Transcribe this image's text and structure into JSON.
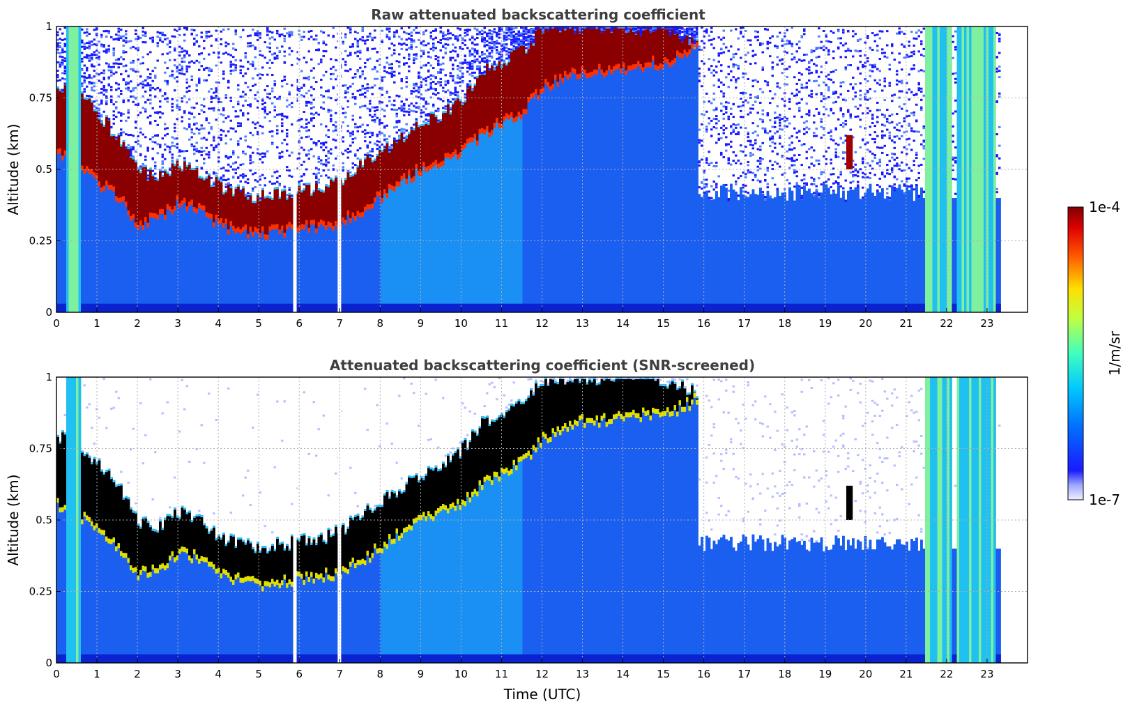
{
  "chart_data": [
    {
      "type": "heatmap",
      "title": "Raw attenuated backscattering coefficient",
      "xlabel": "",
      "ylabel": "Altitude (km)",
      "xlim": [
        0,
        24
      ],
      "ylim": [
        0,
        1
      ],
      "x_ticks": [
        "0",
        "1",
        "2",
        "3",
        "4",
        "5",
        "6",
        "7",
        "8",
        "9",
        "10",
        "11",
        "12",
        "13",
        "14",
        "15",
        "16",
        "17",
        "18",
        "19",
        "20",
        "21",
        "22",
        "23"
      ],
      "y_ticks": [
        "0",
        "0.25",
        "0.5",
        "0.75",
        "1"
      ],
      "grid": true,
      "screened": false,
      "cloud_base_km": [
        [
          0.0,
          0.55
        ],
        [
          0.5,
          0.52
        ],
        [
          1.0,
          0.45
        ],
        [
          1.5,
          0.4
        ],
        [
          2.0,
          0.3
        ],
        [
          2.5,
          0.33
        ],
        [
          3.0,
          0.38
        ],
        [
          3.5,
          0.36
        ],
        [
          4.0,
          0.3
        ],
        [
          4.5,
          0.28
        ],
        [
          5.0,
          0.27
        ],
        [
          5.5,
          0.28
        ],
        [
          6.0,
          0.29
        ],
        [
          6.5,
          0.3
        ],
        [
          7.0,
          0.31
        ],
        [
          7.5,
          0.35
        ],
        [
          8.0,
          0.4
        ],
        [
          8.5,
          0.45
        ],
        [
          9.0,
          0.5
        ],
        [
          9.5,
          0.53
        ],
        [
          10.0,
          0.56
        ],
        [
          10.5,
          0.62
        ],
        [
          11.0,
          0.66
        ],
        [
          11.5,
          0.7
        ],
        [
          12.0,
          0.78
        ],
        [
          12.5,
          0.82
        ],
        [
          13.0,
          0.84
        ],
        [
          13.5,
          0.84
        ],
        [
          14.0,
          0.85
        ],
        [
          14.5,
          0.86
        ],
        [
          15.0,
          0.87
        ],
        [
          15.5,
          0.89
        ],
        [
          15.8,
          0.92
        ]
      ],
      "cloud_top_km": [
        [
          0.0,
          0.8
        ],
        [
          0.5,
          0.78
        ],
        [
          1.0,
          0.7
        ],
        [
          1.5,
          0.62
        ],
        [
          2.0,
          0.5
        ],
        [
          2.5,
          0.48
        ],
        [
          3.0,
          0.53
        ],
        [
          3.5,
          0.5
        ],
        [
          4.0,
          0.45
        ],
        [
          4.5,
          0.42
        ],
        [
          5.0,
          0.41
        ],
        [
          5.5,
          0.42
        ],
        [
          6.0,
          0.43
        ],
        [
          6.5,
          0.44
        ],
        [
          7.0,
          0.47
        ],
        [
          7.5,
          0.52
        ],
        [
          8.0,
          0.57
        ],
        [
          8.5,
          0.62
        ],
        [
          9.0,
          0.66
        ],
        [
          9.5,
          0.7
        ],
        [
          10.0,
          0.75
        ],
        [
          10.5,
          0.85
        ],
        [
          11.0,
          0.88
        ],
        [
          11.5,
          0.92
        ],
        [
          12.0,
          1.0
        ],
        [
          13.0,
          1.0
        ],
        [
          14.0,
          1.0
        ],
        [
          15.0,
          0.99
        ],
        [
          15.8,
          0.95
        ]
      ],
      "isolated_cloud": {
        "time": 19.6,
        "alt_range_km": [
          0.5,
          0.62
        ]
      },
      "precip_columns_utc": [
        0.4,
        21.6,
        21.9,
        22.4,
        22.7,
        23.0
      ]
    },
    {
      "type": "heatmap",
      "title": "Attenuated backscattering coefficient (SNR-screened)",
      "xlabel": "Time (UTC)",
      "ylabel": "Altitude (km)",
      "xlim": [
        0,
        24
      ],
      "ylim": [
        0,
        1
      ],
      "x_ticks": [
        "0",
        "1",
        "2",
        "3",
        "4",
        "5",
        "6",
        "7",
        "8",
        "9",
        "10",
        "11",
        "12",
        "13",
        "14",
        "15",
        "16",
        "17",
        "18",
        "19",
        "20",
        "21",
        "22",
        "23"
      ],
      "y_ticks": [
        "0",
        "0.25",
        "0.5",
        "0.75",
        "1"
      ],
      "grid": true,
      "screened": true
    }
  ],
  "colorbar": {
    "label": "1/m/sr",
    "max_label": "1e-4",
    "min_label": "1e-7",
    "colormap": "jet"
  }
}
